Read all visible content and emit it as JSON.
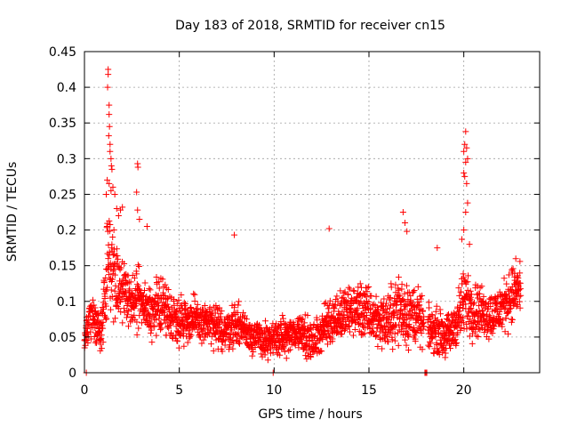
{
  "chart_data": {
    "type": "scatter",
    "title": "Day 183 of 2018, SRMTID for receiver cn15",
    "xlabel": "GPS time / hours",
    "ylabel": "SRMTID / TECUs",
    "xlim": [
      0,
      24.0
    ],
    "ylim": [
      0,
      0.45
    ],
    "x_ticks": [
      0,
      5,
      10,
      15,
      20
    ],
    "x_tick_labels": [
      "0",
      "5",
      "10",
      "15",
      "20"
    ],
    "y_ticks": [
      0,
      0.05,
      0.1,
      0.15,
      0.2,
      0.25,
      0.3,
      0.35,
      0.4,
      0.45
    ],
    "y_tick_labels": [
      "0",
      "0.05",
      "0.1",
      "0.15",
      "0.2",
      "0.25",
      "0.3",
      "0.35",
      "0.4",
      "0.45"
    ],
    "grid": true,
    "legend": "none",
    "marker": "plus",
    "series": [
      {
        "name": "SRMTID",
        "color": "#ff0000",
        "profile": {
          "x": [
            0.0,
            0.3,
            0.6,
            0.9,
            1.0,
            1.2,
            1.4,
            1.6,
            1.8,
            2.0,
            2.3,
            2.6,
            2.8,
            3.0,
            3.3,
            3.6,
            4.0,
            4.5,
            5.0,
            5.5,
            6.0,
            6.5,
            7.0,
            7.5,
            8.0,
            8.5,
            9.0,
            9.5,
            9.8,
            10.0,
            10.5,
            11.0,
            11.5,
            12.0,
            12.5,
            13.0,
            13.5,
            14.0,
            14.5,
            15.0,
            15.5,
            16.0,
            16.5,
            17.0,
            17.5,
            17.8,
            18.0,
            18.3,
            18.6,
            19.0,
            19.3,
            19.6,
            19.8,
            20.0,
            20.2,
            20.5,
            21.0,
            21.5,
            22.0,
            22.5,
            23.0
          ],
          "center": [
            0.045,
            0.08,
            0.07,
            0.06,
            0.08,
            0.15,
            0.16,
            0.14,
            0.13,
            0.11,
            0.1,
            0.1,
            0.1,
            0.11,
            0.09,
            0.08,
            0.1,
            0.08,
            0.075,
            0.075,
            0.07,
            0.07,
            0.06,
            0.06,
            0.07,
            0.06,
            0.05,
            0.045,
            0.04,
            0.05,
            0.05,
            0.055,
            0.06,
            0.04,
            0.06,
            0.075,
            0.08,
            0.085,
            0.09,
            0.08,
            0.075,
            0.07,
            0.09,
            0.085,
            0.08,
            0.07,
            0.06,
            0.06,
            0.06,
            0.05,
            0.055,
            0.07,
            0.085,
            0.1,
            0.1,
            0.09,
            0.085,
            0.08,
            0.09,
            0.11,
            0.12
          ],
          "spread": [
            0.02,
            0.03,
            0.03,
            0.03,
            0.05,
            0.08,
            0.08,
            0.06,
            0.05,
            0.04,
            0.04,
            0.04,
            0.05,
            0.04,
            0.04,
            0.04,
            0.04,
            0.035,
            0.035,
            0.035,
            0.03,
            0.03,
            0.03,
            0.03,
            0.03,
            0.025,
            0.025,
            0.025,
            0.025,
            0.025,
            0.025,
            0.025,
            0.03,
            0.025,
            0.03,
            0.035,
            0.035,
            0.035,
            0.04,
            0.04,
            0.035,
            0.04,
            0.05,
            0.05,
            0.04,
            0.035,
            0.03,
            0.03,
            0.03,
            0.03,
            0.03,
            0.035,
            0.04,
            0.05,
            0.05,
            0.04,
            0.035,
            0.035,
            0.035,
            0.04,
            0.04
          ],
          "min_y": 0,
          "max_y": 0.43,
          "n_points": 2400
        },
        "gaps_hours": [
          [
            17.9,
            18.1
          ]
        ],
        "outliers": [
          {
            "x": 1.25,
            "y": 0.425
          },
          {
            "x": 1.25,
            "y": 0.418
          },
          {
            "x": 1.22,
            "y": 0.4
          },
          {
            "x": 1.3,
            "y": 0.375
          },
          {
            "x": 1.3,
            "y": 0.362
          },
          {
            "x": 1.32,
            "y": 0.345
          },
          {
            "x": 1.28,
            "y": 0.332
          },
          {
            "x": 1.35,
            "y": 0.32
          },
          {
            "x": 1.35,
            "y": 0.31
          },
          {
            "x": 1.4,
            "y": 0.3
          },
          {
            "x": 1.42,
            "y": 0.29
          },
          {
            "x": 1.45,
            "y": 0.285
          },
          {
            "x": 1.2,
            "y": 0.27
          },
          {
            "x": 1.3,
            "y": 0.265
          },
          {
            "x": 1.5,
            "y": 0.26
          },
          {
            "x": 1.15,
            "y": 0.25
          },
          {
            "x": 1.4,
            "y": 0.255
          },
          {
            "x": 1.6,
            "y": 0.25
          },
          {
            "x": 1.7,
            "y": 0.23
          },
          {
            "x": 1.9,
            "y": 0.228
          },
          {
            "x": 2.0,
            "y": 0.232
          },
          {
            "x": 1.8,
            "y": 0.22
          },
          {
            "x": 2.8,
            "y": 0.293
          },
          {
            "x": 2.82,
            "y": 0.288
          },
          {
            "x": 2.75,
            "y": 0.253
          },
          {
            "x": 2.8,
            "y": 0.228
          },
          {
            "x": 2.9,
            "y": 0.215
          },
          {
            "x": 3.3,
            "y": 0.205
          },
          {
            "x": 7.9,
            "y": 0.193
          },
          {
            "x": 12.9,
            "y": 0.202
          },
          {
            "x": 16.8,
            "y": 0.225
          },
          {
            "x": 16.9,
            "y": 0.21
          },
          {
            "x": 17.0,
            "y": 0.198
          },
          {
            "x": 18.6,
            "y": 0.175
          },
          {
            "x": 20.1,
            "y": 0.338
          },
          {
            "x": 20.05,
            "y": 0.32
          },
          {
            "x": 20.15,
            "y": 0.315
          },
          {
            "x": 20.0,
            "y": 0.31
          },
          {
            "x": 20.2,
            "y": 0.3
          },
          {
            "x": 20.1,
            "y": 0.295
          },
          {
            "x": 20.0,
            "y": 0.28
          },
          {
            "x": 20.05,
            "y": 0.275
          },
          {
            "x": 20.15,
            "y": 0.265
          },
          {
            "x": 20.2,
            "y": 0.238
          },
          {
            "x": 20.1,
            "y": 0.225
          },
          {
            "x": 20.0,
            "y": 0.2
          },
          {
            "x": 19.9,
            "y": 0.187
          },
          {
            "x": 20.3,
            "y": 0.18
          },
          {
            "x": 0.1,
            "y": 0.0
          },
          {
            "x": 9.95,
            "y": 0.0
          },
          {
            "x": 17.95,
            "y": 0.0
          },
          {
            "x": 18.0,
            "y": 0.0
          },
          {
            "x": 18.05,
            "y": 0.0
          }
        ]
      }
    ]
  }
}
